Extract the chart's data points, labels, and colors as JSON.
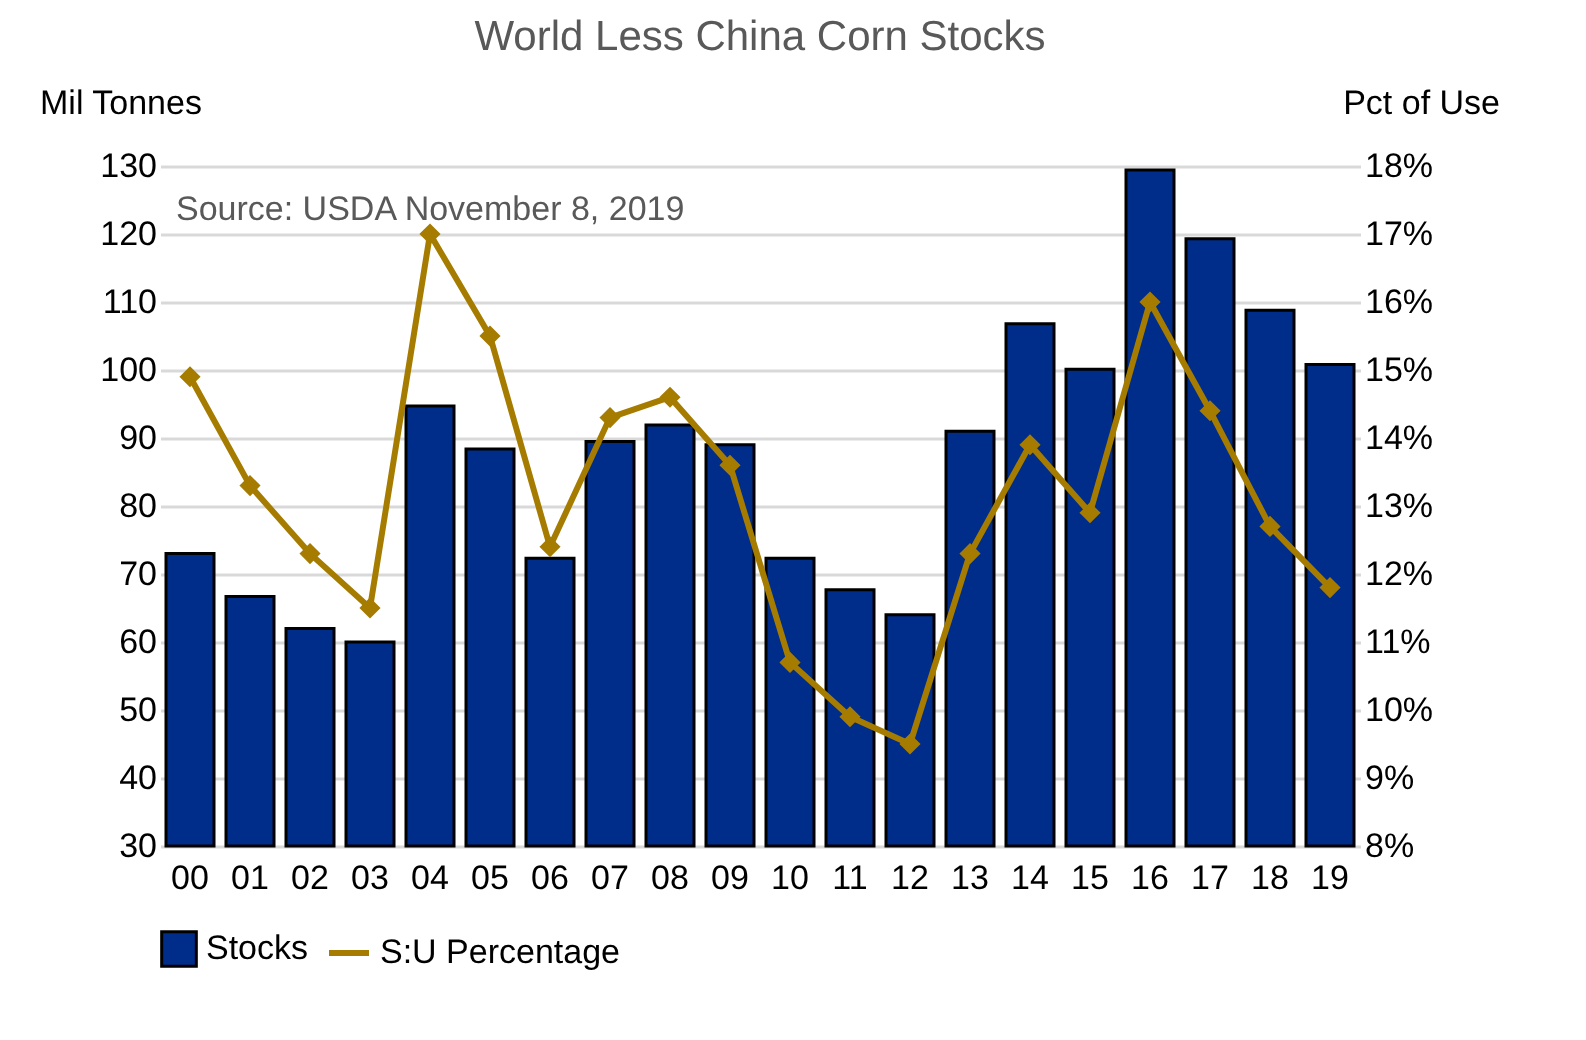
{
  "chart_data": {
    "type": "bar",
    "title": "World Less China Corn Stocks",
    "ylabel": "Mil Tonnes",
    "y2label": "Pct of Use",
    "categories": [
      "00",
      "01",
      "02",
      "03",
      "04",
      "05",
      "06",
      "07",
      "08",
      "09",
      "10",
      "11",
      "12",
      "13",
      "14",
      "15",
      "16",
      "17",
      "18",
      "19"
    ],
    "series": [
      {
        "name": "Stocks",
        "color": "#002d8a",
        "values": [
          73.0,
          66.7,
          62.0,
          60.0,
          94.7,
          88.4,
          72.3,
          89.5,
          91.9,
          89.0,
          72.3,
          67.7,
          64.0,
          91.0,
          106.8,
          100.1,
          129.4,
          119.3,
          108.8,
          100.8
        ]
      },
      {
        "name": "S:U Percentage",
        "type": "line",
        "axis": "y2",
        "color": "#a67c00",
        "marker": "diamond",
        "values": [
          14.9,
          13.3,
          12.3,
          11.5,
          17.0,
          15.5,
          12.4,
          14.3,
          14.6,
          13.6,
          10.7,
          9.9,
          9.5,
          12.3,
          13.9,
          12.9,
          16.0,
          14.4,
          12.7,
          11.8
        ]
      }
    ],
    "ylim": [
      30,
      130
    ],
    "yticks": [
      30,
      40,
      50,
      60,
      70,
      80,
      90,
      100,
      110,
      120,
      130
    ],
    "y2lim": [
      8,
      18
    ],
    "y2ticks": [
      {
        "value": 8,
        "label": "8%"
      },
      {
        "value": 9,
        "label": "9%"
      },
      {
        "value": 10,
        "label": "10%"
      },
      {
        "value": 11,
        "label": "11%"
      },
      {
        "value": 12,
        "label": "12%"
      },
      {
        "value": 13,
        "label": "13%"
      },
      {
        "value": 14,
        "label": "14%"
      },
      {
        "value": 15,
        "label": "15%"
      },
      {
        "value": 16,
        "label": "16%"
      },
      {
        "value": 17,
        "label": "17%"
      },
      {
        "value": 18,
        "label": "18%"
      }
    ],
    "annotations": [
      "Source: USDA November 8, 2019"
    ],
    "grid": "y",
    "legend": "bottom"
  }
}
